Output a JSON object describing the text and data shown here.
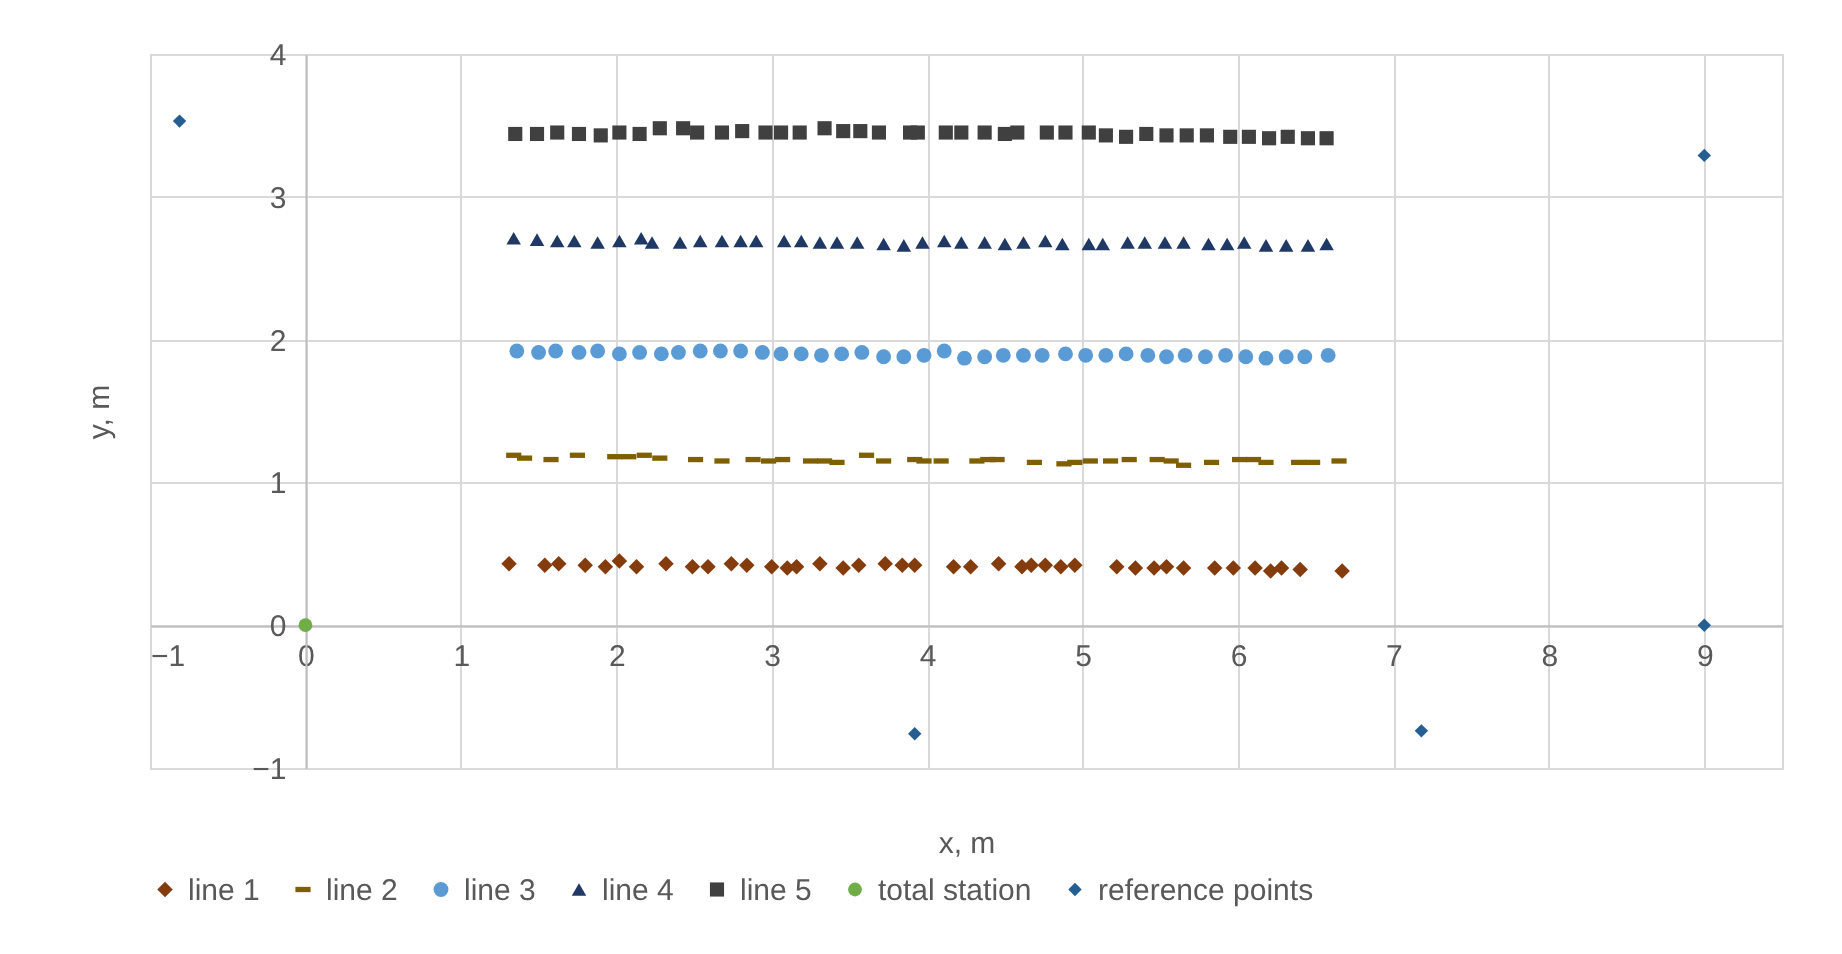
{
  "chart_data": {
    "type": "scatter",
    "xlabel": "x, m",
    "ylabel": "y, m",
    "xlim": [
      -1,
      9.5
    ],
    "xticks": [
      -1,
      0,
      1,
      2,
      3,
      4,
      5,
      6,
      7,
      8,
      9
    ],
    "ylim": [
      -1,
      4
    ],
    "yticks": [
      -1,
      0,
      1,
      2,
      3,
      4
    ],
    "grid": true,
    "legend": "bottom",
    "series": [
      {
        "name": "line 1",
        "color": "#843c0c",
        "marker": "diamond",
        "x": [
          1.31,
          1.54,
          1.63,
          1.8,
          1.93,
          2.02,
          2.13,
          2.32,
          2.49,
          2.59,
          2.74,
          2.84,
          3.0,
          3.1,
          3.16,
          3.31,
          3.46,
          3.56,
          3.73,
          3.84,
          3.92,
          4.17,
          4.28,
          4.46,
          4.61,
          4.67,
          4.76,
          4.86,
          4.95,
          5.22,
          5.34,
          5.46,
          5.54,
          5.65,
          5.85,
          5.97,
          6.11,
          6.21,
          6.28,
          6.4,
          6.67
        ],
        "values": [
          0.43,
          0.42,
          0.43,
          0.42,
          0.41,
          0.45,
          0.41,
          0.43,
          0.41,
          0.41,
          0.43,
          0.42,
          0.41,
          0.4,
          0.41,
          0.43,
          0.4,
          0.42,
          0.43,
          0.42,
          0.42,
          0.41,
          0.41,
          0.43,
          0.41,
          0.42,
          0.42,
          0.41,
          0.42,
          0.41,
          0.4,
          0.4,
          0.41,
          0.4,
          0.4,
          0.4,
          0.4,
          0.38,
          0.4,
          0.39,
          0.38
        ]
      },
      {
        "name": "line 2",
        "color": "#7f6000",
        "x": [
          1.34,
          1.41,
          1.58,
          1.75,
          1.99,
          2.08,
          2.18,
          2.28,
          2.51,
          2.68,
          2.88,
          2.98,
          3.07,
          3.25,
          3.34,
          3.42,
          3.61,
          3.72,
          3.92,
          3.98,
          4.09,
          4.32,
          4.39,
          4.45,
          4.69,
          4.88,
          4.95,
          5.05,
          5.18,
          5.3,
          5.48,
          5.57,
          5.65,
          5.83,
          6.01,
          6.1,
          6.18,
          6.39,
          6.48,
          6.65
        ],
        "values": [
          1.19,
          1.17,
          1.16,
          1.19,
          1.18,
          1.18,
          1.19,
          1.17,
          1.16,
          1.15,
          1.16,
          1.15,
          1.16,
          1.15,
          1.15,
          1.14,
          1.19,
          1.15,
          1.16,
          1.15,
          1.15,
          1.15,
          1.16,
          1.16,
          1.14,
          1.13,
          1.14,
          1.15,
          1.15,
          1.16,
          1.16,
          1.15,
          1.12,
          1.14,
          1.16,
          1.16,
          1.14,
          1.14,
          1.14,
          1.15
        ]
      },
      {
        "name": "line 3",
        "color": "#5b9bd5",
        "marker": "circle",
        "x": [
          1.36,
          1.5,
          1.61,
          1.76,
          1.88,
          2.02,
          2.15,
          2.29,
          2.4,
          2.54,
          2.67,
          2.8,
          2.94,
          3.06,
          3.19,
          3.32,
          3.45,
          3.58,
          3.72,
          3.85,
          3.98,
          4.11,
          4.24,
          4.37,
          4.49,
          4.62,
          4.74,
          4.89,
          5.02,
          5.15,
          5.28,
          5.42,
          5.54,
          5.66,
          5.79,
          5.92,
          6.05,
          6.18,
          6.31,
          6.43,
          6.58
        ],
        "values": [
          1.92,
          1.91,
          1.92,
          1.91,
          1.92,
          1.9,
          1.91,
          1.9,
          1.91,
          1.92,
          1.92,
          1.92,
          1.91,
          1.9,
          1.9,
          1.89,
          1.9,
          1.91,
          1.88,
          1.88,
          1.89,
          1.92,
          1.87,
          1.88,
          1.89,
          1.89,
          1.89,
          1.9,
          1.89,
          1.89,
          1.9,
          1.89,
          1.88,
          1.89,
          1.88,
          1.89,
          1.88,
          1.87,
          1.88,
          1.88,
          1.89
        ]
      },
      {
        "name": "line 4",
        "color": "#1f3864",
        "marker": "triangle",
        "x": [
          1.34,
          1.49,
          1.62,
          1.73,
          1.88,
          2.02,
          2.16,
          2.23,
          2.41,
          2.54,
          2.68,
          2.8,
          2.9,
          3.08,
          3.19,
          3.31,
          3.42,
          3.55,
          3.72,
          3.85,
          3.97,
          4.11,
          4.22,
          4.37,
          4.5,
          4.62,
          4.76,
          4.87,
          5.04,
          5.13,
          5.29,
          5.4,
          5.53,
          5.65,
          5.81,
          5.93,
          6.04,
          6.18,
          6.31,
          6.45,
          6.57
        ],
        "values": [
          2.71,
          2.7,
          2.69,
          2.69,
          2.68,
          2.69,
          2.71,
          2.68,
          2.68,
          2.69,
          2.69,
          2.69,
          2.69,
          2.69,
          2.69,
          2.68,
          2.68,
          2.68,
          2.67,
          2.66,
          2.68,
          2.69,
          2.68,
          2.68,
          2.67,
          2.68,
          2.69,
          2.67,
          2.67,
          2.67,
          2.68,
          2.68,
          2.68,
          2.68,
          2.67,
          2.67,
          2.68,
          2.66,
          2.66,
          2.66,
          2.67
        ]
      },
      {
        "name": "line 5",
        "color": "#404040",
        "marker": "square",
        "x": [
          1.35,
          1.49,
          1.62,
          1.76,
          1.9,
          2.02,
          2.15,
          2.28,
          2.43,
          2.52,
          2.68,
          2.81,
          2.96,
          3.06,
          3.18,
          3.34,
          3.46,
          3.57,
          3.69,
          3.89,
          3.94,
          4.12,
          4.22,
          4.37,
          4.5,
          4.58,
          4.77,
          4.89,
          5.04,
          5.15,
          5.28,
          5.41,
          5.54,
          5.67,
          5.8,
          5.95,
          6.07,
          6.2,
          6.32,
          6.45,
          6.57
        ],
        "values": [
          3.44,
          3.44,
          3.45,
          3.44,
          3.43,
          3.45,
          3.44,
          3.48,
          3.48,
          3.45,
          3.45,
          3.46,
          3.45,
          3.45,
          3.45,
          3.48,
          3.46,
          3.46,
          3.45,
          3.45,
          3.45,
          3.45,
          3.45,
          3.45,
          3.44,
          3.45,
          3.45,
          3.45,
          3.45,
          3.43,
          3.42,
          3.44,
          3.43,
          3.43,
          3.43,
          3.42,
          3.42,
          3.41,
          3.42,
          3.41,
          3.41
        ]
      },
      {
        "name": "total station",
        "color": "#70ad47",
        "marker": "circle",
        "x": [
          0
        ],
        "values": [
          0
        ]
      },
      {
        "name": "reference points",
        "color": "#255e91",
        "marker": "diamond",
        "x": [
          -0.81,
          3.92,
          7.18,
          9.0,
          9.0
        ],
        "values": [
          3.53,
          -0.76,
          -0.74,
          0,
          3.29
        ]
      }
    ]
  }
}
